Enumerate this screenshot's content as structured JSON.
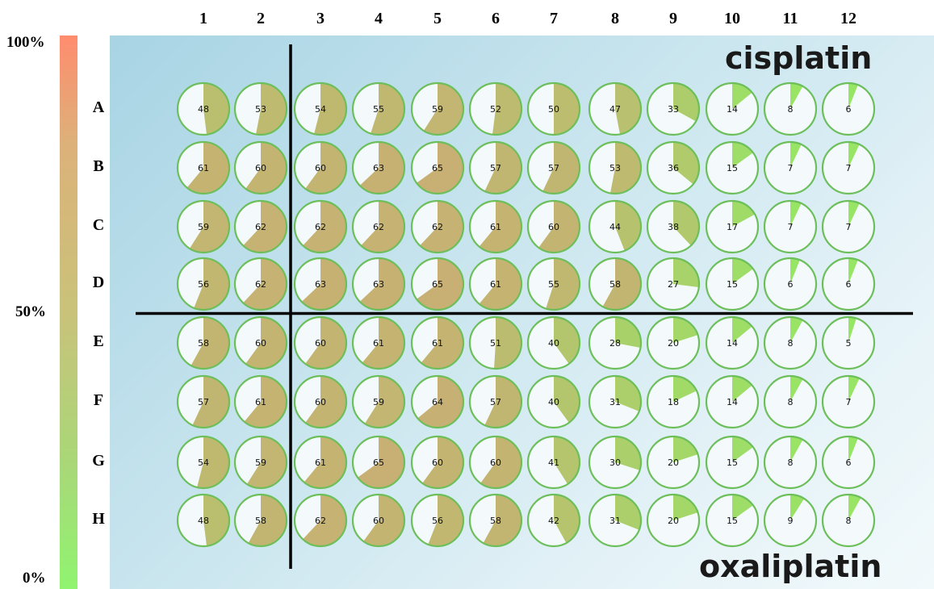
{
  "scale": {
    "top_label": "100%",
    "mid_label": "50%",
    "bottom_label": "0%",
    "colors": [
      "#ff8c6e",
      "#dcb27a",
      "#c9c27a",
      "#a8d878",
      "#90f470"
    ]
  },
  "labels": {
    "top_drug": "cisplatin",
    "bottom_drug": "oxaliplatin"
  },
  "chart_data": {
    "type": "pie",
    "description_units": "percent",
    "columns": [
      "1",
      "2",
      "3",
      "4",
      "5",
      "6",
      "7",
      "8",
      "9",
      "10",
      "11",
      "12"
    ],
    "rows": [
      "A",
      "B",
      "C",
      "D",
      "E",
      "F",
      "G",
      "H"
    ],
    "values": [
      [
        48,
        53,
        54,
        55,
        59,
        52,
        50,
        47,
        33,
        14,
        8,
        6
      ],
      [
        61,
        60,
        60,
        63,
        65,
        57,
        57,
        53,
        36,
        15,
        7,
        7
      ],
      [
        59,
        62,
        62,
        62,
        62,
        61,
        60,
        44,
        38,
        17,
        7,
        7
      ],
      [
        56,
        62,
        63,
        63,
        65,
        61,
        55,
        58,
        27,
        15,
        6,
        6
      ],
      [
        58,
        60,
        60,
        61,
        61,
        51,
        40,
        28,
        20,
        14,
        8,
        5
      ],
      [
        57,
        61,
        60,
        59,
        64,
        57,
        40,
        31,
        18,
        14,
        8,
        7
      ],
      [
        54,
        59,
        61,
        65,
        60,
        60,
        41,
        30,
        20,
        15,
        8,
        6
      ],
      [
        48,
        58,
        62,
        60,
        56,
        58,
        42,
        31,
        20,
        15,
        9,
        8
      ]
    ],
    "scale_range": [
      0,
      100
    ],
    "divider_after_column": "2",
    "divider_after_row": "D"
  }
}
